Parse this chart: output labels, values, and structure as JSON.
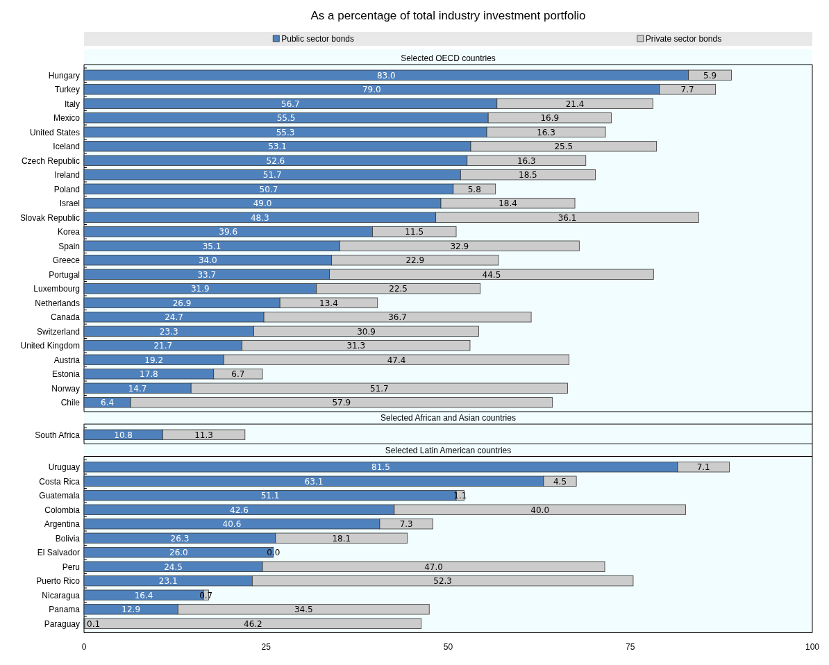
{
  "chart_data": [
    {
      "type": "bar",
      "orientation": "horizontal",
      "stacked": true,
      "title": "As a percentage of total industry investment portfolio",
      "subtitle": "Selected OECD countries",
      "legend": "top",
      "xlim": [
        0,
        100
      ],
      "tick_labels": "y",
      "categories": [
        "Hungary",
        "Turkey",
        "Italy",
        "Mexico",
        "United States",
        "Iceland",
        "Czech Republic",
        "Ireland",
        "Poland",
        "Israel",
        "Slovak Republic",
        "Korea",
        "Spain",
        "Greece",
        "Portugal",
        "Luxembourg",
        "Netherlands",
        "Canada",
        "Switzerland",
        "United Kingdom",
        "Austria",
        "Estonia",
        "Norway",
        "Chile"
      ],
      "series": [
        {
          "name": "Public sector bonds",
          "color": "#4f81bd",
          "values": [
            83.0,
            79.0,
            56.7,
            55.5,
            55.3,
            53.1,
            52.6,
            51.7,
            50.7,
            49.0,
            48.3,
            39.6,
            35.1,
            34.0,
            33.7,
            31.9,
            26.9,
            24.7,
            23.3,
            21.7,
            19.2,
            17.8,
            14.7,
            6.4
          ],
          "value_labels": [
            "83.0",
            "79.0",
            "56.7",
            "55.5",
            "55.3",
            "53.1",
            "52.6",
            "51.7",
            "50.7",
            "49.0",
            "48.3",
            "39.6",
            "35.1",
            "34.0",
            "33.7",
            "31.9",
            "26.9",
            "24.7",
            "23.3",
            "21.7",
            "19.2",
            "17.8",
            "14.7",
            "6.4"
          ]
        },
        {
          "name": "Private sector bonds",
          "color": "#cccccc",
          "values": [
            5.9,
            7.7,
            21.4,
            16.9,
            16.3,
            25.5,
            16.3,
            18.5,
            5.8,
            18.4,
            36.1,
            11.5,
            32.9,
            22.9,
            44.5,
            22.5,
            13.4,
            36.7,
            30.9,
            31.3,
            47.4,
            6.7,
            51.7,
            57.9
          ],
          "value_labels": [
            "5.9",
            "7.7",
            "21.4",
            "16.9",
            "16.3",
            "25.5",
            "16.3",
            "18.5",
            "5.8",
            "18.4",
            "36.1",
            "11.5",
            "32.9",
            "22.9",
            "44.5",
            "22.5",
            "13.4",
            "36.7",
            "30.9",
            "31.3",
            "47.4",
            "6.7",
            "51.7",
            "57.9"
          ]
        }
      ]
    },
    {
      "type": "bar",
      "orientation": "horizontal",
      "stacked": true,
      "subtitle": "Selected African and Asian countries",
      "xlim": [
        0,
        100
      ],
      "tick_labels": "y",
      "categories": [
        "South Africa"
      ],
      "series": [
        {
          "color": "#4f81bd",
          "values": [
            10.8
          ],
          "value_labels": [
            "10.8"
          ]
        },
        {
          "color": "#cccccc",
          "values": [
            11.3
          ],
          "value_labels": [
            "11.3"
          ]
        }
      ]
    },
    {
      "type": "bar",
      "orientation": "horizontal",
      "stacked": true,
      "subtitle": "Selected Latin American countries",
      "xlim": [
        0,
        100
      ],
      "xticks": [
        0,
        25,
        50,
        75,
        100
      ],
      "categories": [
        "Uruguay",
        "Costa Rica",
        "Guatemala",
        "Colombia",
        "Argentina",
        "Bolivia",
        "El Salvador",
        "Peru",
        "Puerto Rico",
        "Nicaragua",
        "Panama",
        "Paraguay"
      ],
      "series": [
        {
          "color": "#4f81bd",
          "values": [
            81.5,
            63.1,
            51.1,
            42.6,
            40.6,
            26.3,
            26.0,
            24.5,
            23.1,
            16.4,
            12.9,
            0.1
          ],
          "value_labels": [
            "81.5",
            "63.1",
            "51.1",
            "42.6",
            "40.6",
            "26.3",
            "26.0",
            "24.5",
            "23.1",
            "16.4",
            "12.9",
            "0.1"
          ]
        },
        {
          "color": "#cccccc",
          "values": [
            7.1,
            4.5,
            1.1,
            40.0,
            7.3,
            18.1,
            0.0,
            47.0,
            52.3,
            0.7,
            34.5,
            46.2
          ],
          "value_labels": [
            "7.1",
            "4.5",
            "1.1",
            "40.0",
            "7.3",
            "18.1",
            "0.0",
            "47.0",
            "52.3",
            "0.7",
            "34.5",
            "46.2"
          ]
        }
      ]
    }
  ]
}
